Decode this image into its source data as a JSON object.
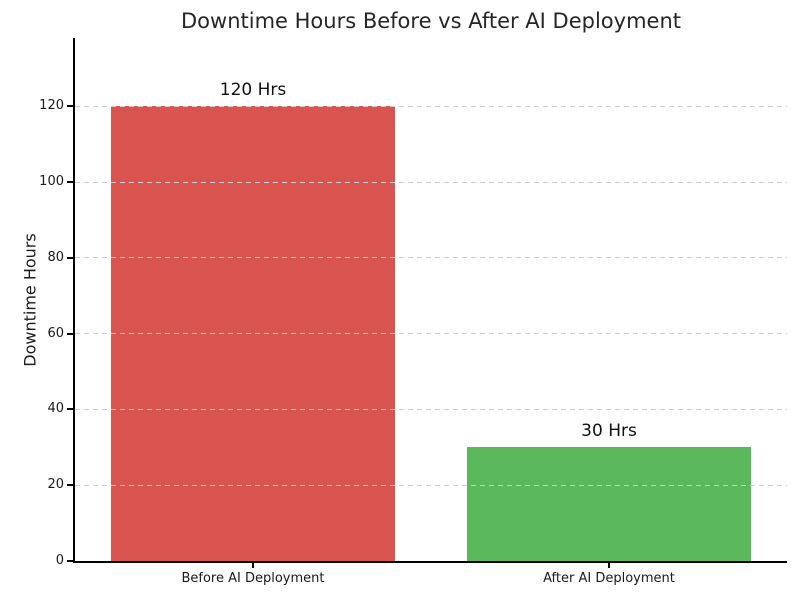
{
  "chart_data": {
    "type": "bar",
    "title": "Downtime Hours Before vs After AI Deployment",
    "ylabel": "Downtime Hours",
    "xlabel": "",
    "categories": [
      "Before AI Deployment",
      "After AI Deployment"
    ],
    "values": [
      120,
      30
    ],
    "bar_value_labels": [
      "120 Hrs",
      "30 Hrs"
    ],
    "bar_colors": [
      "#d9534f",
      "#5cb85c"
    ],
    "yticks": [
      0,
      20,
      40,
      60,
      80,
      100,
      120
    ],
    "ylim": [
      0,
      138
    ],
    "bar_width_fraction": 0.8,
    "grid": {
      "axis": "y",
      "style": "dashed",
      "color": "#cccccc",
      "above_bars": true
    },
    "legend_visible": false,
    "colors": {
      "title": "#262626",
      "axis": "#000000",
      "tick_label": "#1a1a1a",
      "value_label": "#111111",
      "background": "#ffffff"
    }
  }
}
